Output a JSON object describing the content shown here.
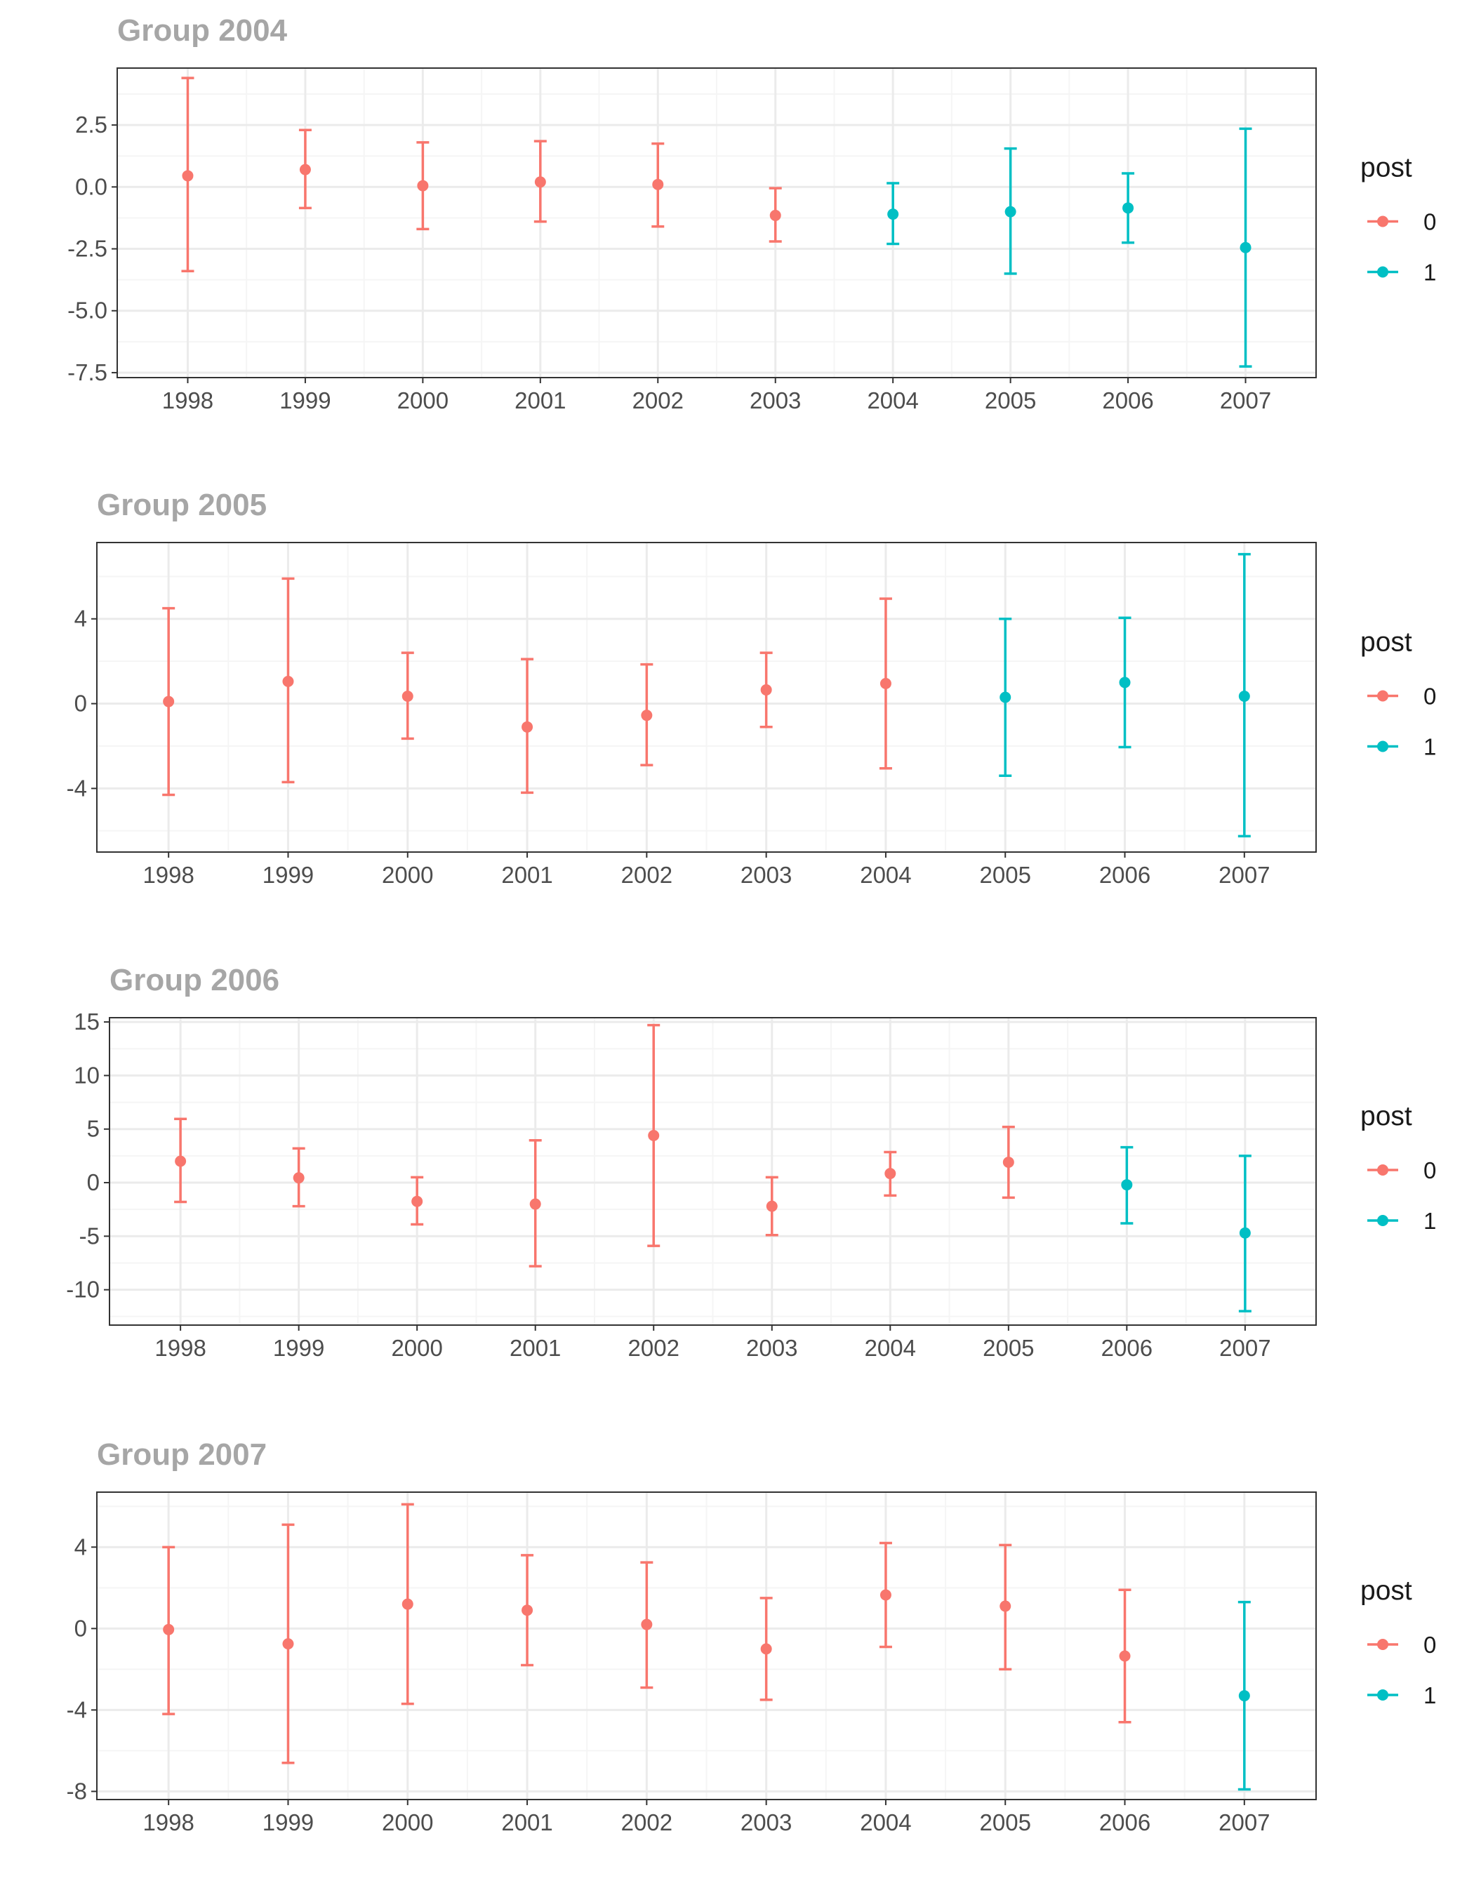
{
  "colors": {
    "post_0": "#F8766D",
    "post_1": "#00BFC4",
    "grid_major": "#EBEBEB",
    "grid_minor": "#F5F5F5",
    "frame": "#333333"
  },
  "legend": {
    "title": "post",
    "levels": [
      "0",
      "1"
    ]
  },
  "chart_data": [
    {
      "type": "errorbar",
      "title": "Group 2004",
      "xlabel": "",
      "ylabel": "",
      "categories": [
        "1998",
        "1999",
        "2000",
        "2001",
        "2002",
        "2003",
        "2004",
        "2005",
        "2006",
        "2007"
      ],
      "ylim": [
        -7.7,
        4.8
      ],
      "y_ticks": [
        2.5,
        0.0,
        -2.5,
        -5.0,
        -7.5
      ],
      "y_tick_labels": [
        "2.5",
        "0.0",
        "-2.5",
        "-5.0",
        "-7.5"
      ],
      "estimate": [
        0.45,
        0.7,
        0.05,
        0.2,
        0.1,
        -1.15,
        -1.1,
        -1.0,
        -0.85,
        -2.45
      ],
      "lower": [
        -3.4,
        -0.85,
        -1.7,
        -1.4,
        -1.6,
        -2.2,
        -2.3,
        -3.5,
        -2.25,
        -7.25
      ],
      "upper": [
        4.4,
        2.3,
        1.8,
        1.85,
        1.75,
        -0.05,
        0.15,
        1.55,
        0.55,
        2.35
      ],
      "post": [
        0,
        0,
        0,
        0,
        0,
        0,
        1,
        1,
        1,
        1
      ]
    },
    {
      "type": "errorbar",
      "title": "Group 2005",
      "xlabel": "",
      "ylabel": "",
      "categories": [
        "1998",
        "1999",
        "2000",
        "2001",
        "2002",
        "2003",
        "2004",
        "2005",
        "2006",
        "2007"
      ],
      "ylim": [
        -7.0,
        7.6
      ],
      "y_ticks": [
        4,
        0,
        -4
      ],
      "y_tick_labels": [
        "4",
        "0",
        "-4"
      ],
      "estimate": [
        0.1,
        1.05,
        0.35,
        -1.1,
        -0.55,
        0.65,
        0.95,
        0.3,
        1.0,
        0.35
      ],
      "lower": [
        -4.3,
        -3.7,
        -1.65,
        -4.2,
        -2.9,
        -1.1,
        -3.05,
        -3.4,
        -2.05,
        -6.25
      ],
      "upper": [
        4.5,
        5.9,
        2.4,
        2.1,
        1.85,
        2.4,
        4.95,
        4.0,
        4.05,
        7.05
      ],
      "post": [
        0,
        0,
        0,
        0,
        0,
        0,
        0,
        1,
        1,
        1
      ]
    },
    {
      "type": "errorbar",
      "title": "Group 2006",
      "xlabel": "",
      "ylabel": "",
      "categories": [
        "1998",
        "1999",
        "2000",
        "2001",
        "2002",
        "2003",
        "2004",
        "2005",
        "2006",
        "2007"
      ],
      "ylim": [
        -13.3,
        15.4
      ],
      "y_ticks": [
        15,
        10,
        5,
        0,
        -5,
        -10
      ],
      "y_tick_labels": [
        "15",
        "10",
        "5",
        "0",
        "-5",
        "-10"
      ],
      "estimate": [
        2.0,
        0.45,
        -1.75,
        -2.0,
        4.4,
        -2.2,
        0.85,
        1.9,
        -0.2,
        -4.7
      ],
      "lower": [
        -1.8,
        -2.2,
        -3.9,
        -7.8,
        -5.9,
        -4.9,
        -1.2,
        -1.4,
        -3.8,
        -12.0
      ],
      "upper": [
        5.95,
        3.2,
        0.5,
        3.95,
        14.7,
        0.5,
        2.85,
        5.2,
        3.3,
        2.5
      ],
      "post": [
        0,
        0,
        0,
        0,
        0,
        0,
        0,
        0,
        1,
        1
      ]
    },
    {
      "type": "errorbar",
      "title": "Group 2007",
      "xlabel": "",
      "ylabel": "",
      "categories": [
        "1998",
        "1999",
        "2000",
        "2001",
        "2002",
        "2003",
        "2004",
        "2005",
        "2006",
        "2007"
      ],
      "ylim": [
        -8.4,
        6.7
      ],
      "y_ticks": [
        4,
        0,
        -4,
        -8
      ],
      "y_tick_labels": [
        "4",
        "0",
        "-4",
        "-8"
      ],
      "estimate": [
        -0.05,
        -0.75,
        1.2,
        0.9,
        0.2,
        -1.0,
        1.65,
        1.1,
        -1.35,
        -3.3
      ],
      "lower": [
        -4.2,
        -6.6,
        -3.7,
        -1.8,
        -2.9,
        -3.5,
        -0.9,
        -2.0,
        -4.6,
        -7.9
      ],
      "upper": [
        4.0,
        5.1,
        6.1,
        3.6,
        3.25,
        1.5,
        4.2,
        4.1,
        1.9,
        1.3
      ],
      "post": [
        0,
        0,
        0,
        0,
        0,
        0,
        0,
        0,
        0,
        1
      ]
    }
  ]
}
